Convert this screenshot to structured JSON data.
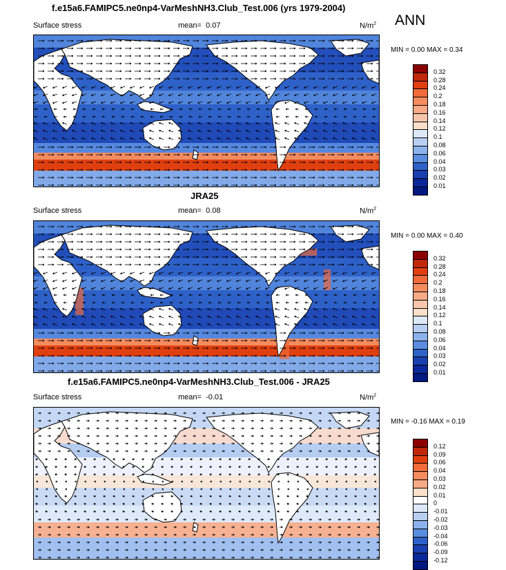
{
  "season": "ANN",
  "panels": [
    {
      "title": "f.e15a6.FAMIPC5.ne0np4-VarMeshNH3.Club_Test.006 (yrs 1979-2004)",
      "variable": "Surface stress",
      "mean_label": "mean=",
      "mean_value": "0.07",
      "units": "N/m",
      "units_exp": "2",
      "minmax": "MIN =   0.00 MAX =   0.34",
      "levels": [
        "0.32",
        "0.28",
        "0.24",
        "0.2",
        "0.18",
        "0.16",
        "0.14",
        "0.12",
        "0.1",
        "0.08",
        "0.06",
        "0.04",
        "0.03",
        "0.02",
        "0.01"
      ],
      "colors": [
        "#8b0000",
        "#c0280a",
        "#e04010",
        "#f06a3a",
        "#f48c60",
        "#f6aa86",
        "#f7c6aa",
        "#fadfca",
        "#dce8f8",
        "#b8cff2",
        "#8cb2ec",
        "#5a8de0",
        "#2f62c8",
        "#1a40b0",
        "#0a2898",
        "#001880"
      ]
    },
    {
      "title": "JRA25",
      "variable": "Surface stress",
      "mean_label": "mean=",
      "mean_value": "0.08",
      "units": "N/m",
      "units_exp": "2",
      "minmax": "MIN =   0.00 MAX =   0.40",
      "levels": [
        "0.32",
        "0.28",
        "0.24",
        "0.2",
        "0.18",
        "0.16",
        "0.14",
        "0.12",
        "0.1",
        "0.08",
        "0.06",
        "0.04",
        "0.03",
        "0.02",
        "0.01"
      ],
      "colors": [
        "#8b0000",
        "#c0280a",
        "#e04010",
        "#f06a3a",
        "#f48c60",
        "#f6aa86",
        "#f7c6aa",
        "#fadfca",
        "#dce8f8",
        "#b8cff2",
        "#8cb2ec",
        "#5a8de0",
        "#2f62c8",
        "#1a40b0",
        "#0a2898",
        "#001880"
      ]
    },
    {
      "title": "f.e15a6.FAMIPC5.ne0np4-VarMeshNH3.Club_Test.006 - JRA25",
      "variable": "Surface stress",
      "mean_label": "mean=",
      "mean_value": "-0.01",
      "units": "N/m",
      "units_exp": "2",
      "minmax": "MIN = -0.16 MAX =   0.19",
      "levels": [
        "0.12",
        "0.09",
        "0.06",
        "0.04",
        "0.03",
        "0.02",
        "0.01",
        "0",
        "-0.01",
        "-0.02",
        "-0.03",
        "-0.04",
        "-0.06",
        "-0.09",
        "-0.12"
      ],
      "colors": [
        "#8b0000",
        "#c0280a",
        "#e04010",
        "#f06a3a",
        "#f48c60",
        "#f6aa86",
        "#fadfca",
        "#ffffff",
        "#dce8f8",
        "#b8cff2",
        "#8cb2ec",
        "#5a8de0",
        "#2f62c8",
        "#1a40b0",
        "#0a2898",
        "#001880"
      ]
    }
  ]
}
